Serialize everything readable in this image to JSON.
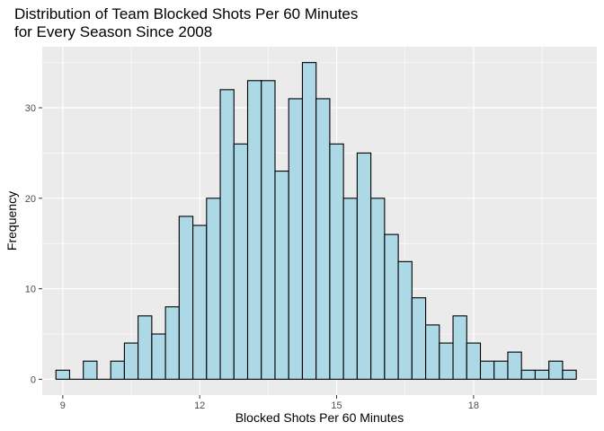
{
  "chart_data": {
    "type": "bar",
    "title": "Distribution of Team Blocked Shots Per 60 Minutes\nfor Every Season Since 2008",
    "xlabel": "Blocked Shots Per 60 Minutes",
    "ylabel": "Frequency",
    "xlim": [
      8.55,
      20.7
    ],
    "ylim": [
      -1.75,
      36.75
    ],
    "xticks": [
      9,
      12,
      15,
      18
    ],
    "yticks": [
      0,
      10,
      20,
      30
    ],
    "bin_width": 0.3,
    "bins": [
      {
        "x": 9.0,
        "count": 1
      },
      {
        "x": 9.3,
        "count": 0
      },
      {
        "x": 9.6,
        "count": 2
      },
      {
        "x": 9.9,
        "count": 0
      },
      {
        "x": 10.2,
        "count": 2
      },
      {
        "x": 10.5,
        "count": 4
      },
      {
        "x": 10.8,
        "count": 7
      },
      {
        "x": 11.1,
        "count": 5
      },
      {
        "x": 11.4,
        "count": 8
      },
      {
        "x": 11.7,
        "count": 18
      },
      {
        "x": 12.0,
        "count": 17
      },
      {
        "x": 12.3,
        "count": 20
      },
      {
        "x": 12.6,
        "count": 32
      },
      {
        "x": 12.9,
        "count": 26
      },
      {
        "x": 13.2,
        "count": 33
      },
      {
        "x": 13.5,
        "count": 33
      },
      {
        "x": 13.8,
        "count": 23
      },
      {
        "x": 14.1,
        "count": 31
      },
      {
        "x": 14.4,
        "count": 35
      },
      {
        "x": 14.7,
        "count": 31
      },
      {
        "x": 15.0,
        "count": 26
      },
      {
        "x": 15.3,
        "count": 20
      },
      {
        "x": 15.6,
        "count": 25
      },
      {
        "x": 15.9,
        "count": 20
      },
      {
        "x": 16.2,
        "count": 16
      },
      {
        "x": 16.5,
        "count": 13
      },
      {
        "x": 16.8,
        "count": 9
      },
      {
        "x": 17.1,
        "count": 6
      },
      {
        "x": 17.4,
        "count": 4
      },
      {
        "x": 17.7,
        "count": 7
      },
      {
        "x": 18.0,
        "count": 4
      },
      {
        "x": 18.3,
        "count": 2
      },
      {
        "x": 18.6,
        "count": 2
      },
      {
        "x": 18.9,
        "count": 3
      },
      {
        "x": 19.2,
        "count": 1
      },
      {
        "x": 19.5,
        "count": 1
      },
      {
        "x": 19.8,
        "count": 2
      },
      {
        "x": 20.1,
        "count": 1
      }
    ],
    "grid": true,
    "colors": {
      "panel": "#ebebeb",
      "grid": "#ffffff",
      "bar_fill": "#add8e6",
      "bar_outline": "#000000"
    }
  }
}
